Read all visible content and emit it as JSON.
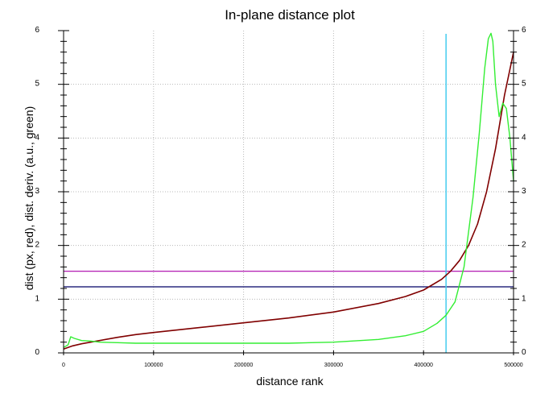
{
  "chart_data": {
    "type": "line",
    "title": "In-plane distance plot",
    "xlabel": "distance rank",
    "ylabel": "dist (px, red), dist. deriv. (a.u., green)",
    "xlim": [
      0,
      500000
    ],
    "ylim": [
      0,
      6
    ],
    "grid": true,
    "x_ticks": [
      {
        "value": 0,
        "label": "0"
      },
      {
        "value": 100000,
        "label": "100000"
      },
      {
        "value": 200000,
        "label": "200000"
      },
      {
        "value": 300000,
        "label": "300000"
      },
      {
        "value": 400000,
        "label": "400000"
      },
      {
        "value": 500000,
        "label": "500000"
      }
    ],
    "y_ticks": [
      {
        "value": 0,
        "label": "0"
      },
      {
        "value": 1,
        "label": "1"
      },
      {
        "value": 2,
        "label": "2"
      },
      {
        "value": 3,
        "label": "3"
      },
      {
        "value": 4,
        "label": "4"
      },
      {
        "value": 5,
        "label": "5"
      },
      {
        "value": 6,
        "label": "6"
      }
    ],
    "series": [
      {
        "color": "#800000",
        "x": [
          0,
          10000,
          20000,
          40000,
          60000,
          80000,
          100000,
          150000,
          200000,
          250000,
          300000,
          350000,
          380000,
          400000,
          420000,
          430000,
          440000,
          450000,
          460000,
          470000,
          480000,
          490000,
          500000
        ],
        "y": [
          0.07,
          0.13,
          0.17,
          0.23,
          0.29,
          0.34,
          0.38,
          0.47,
          0.56,
          0.65,
          0.76,
          0.92,
          1.05,
          1.17,
          1.37,
          1.52,
          1.72,
          2.0,
          2.4,
          3.0,
          3.8,
          4.8,
          5.6
        ]
      },
      {
        "color": "#33ee33",
        "x": [
          0,
          5000,
          8000,
          12000,
          20000,
          30000,
          40000,
          60000,
          80000,
          100000,
          150000,
          200000,
          250000,
          300000,
          350000,
          380000,
          400000,
          415000,
          425000,
          435000,
          445000,
          455000,
          462000,
          468000,
          472000,
          475000,
          477000,
          480000,
          484000,
          488000,
          492000,
          496000,
          500000
        ],
        "y": [
          0.1,
          0.15,
          0.3,
          0.27,
          0.23,
          0.22,
          0.2,
          0.19,
          0.18,
          0.18,
          0.18,
          0.18,
          0.18,
          0.2,
          0.25,
          0.32,
          0.4,
          0.55,
          0.7,
          0.95,
          1.6,
          2.9,
          4.1,
          5.3,
          5.85,
          5.95,
          5.8,
          5.0,
          4.4,
          4.65,
          4.55,
          4.0,
          3.2
        ]
      }
    ],
    "reference_lines": [
      {
        "orientation": "horizontal",
        "value": 1.52,
        "color": "#aa00aa"
      },
      {
        "orientation": "horizontal",
        "value": 1.23,
        "color": "#000066"
      },
      {
        "orientation": "vertical",
        "value": 425000,
        "color": "#44ccee"
      }
    ]
  }
}
